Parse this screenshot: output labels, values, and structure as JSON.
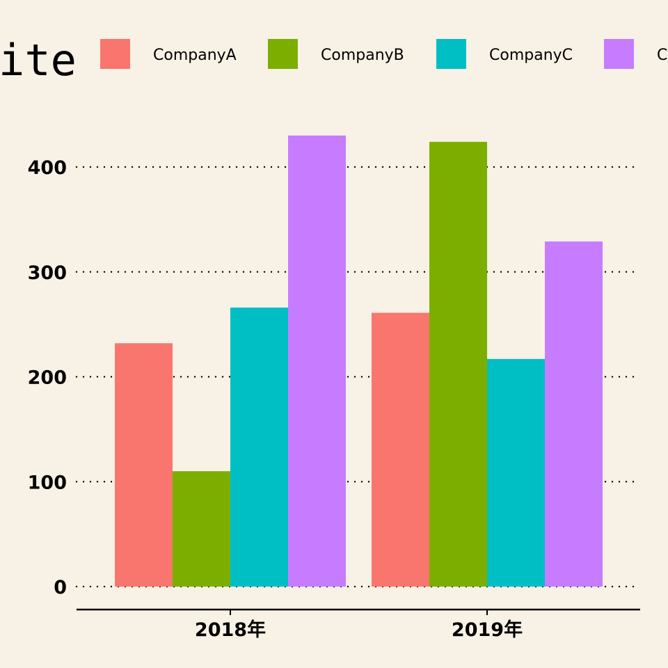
{
  "chart_data": {
    "type": "bar",
    "title": "ite",
    "categories": [
      "2018年",
      "2019年"
    ],
    "series": [
      {
        "name": "CompanyA",
        "color": "#f8766d",
        "values": [
          232,
          261
        ]
      },
      {
        "name": "CompanyB",
        "color": "#7cae00",
        "values": [
          110,
          424
        ]
      },
      {
        "name": "CompanyC",
        "color": "#00bfc4",
        "values": [
          266,
          217
        ]
      },
      {
        "name": "C",
        "color": "#c77cff",
        "values": [
          430,
          329
        ]
      }
    ],
    "yticks": [
      0,
      100,
      200,
      300,
      400
    ],
    "ylim": [
      0,
      450
    ],
    "xlabel": "",
    "ylabel": "",
    "grid": "horizontal dotted",
    "legend_position": "top"
  }
}
